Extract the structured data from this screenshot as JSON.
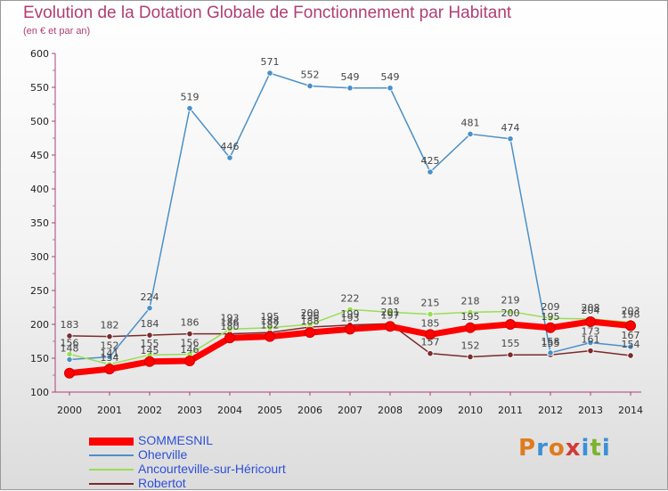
{
  "chart_data": {
    "type": "line",
    "title": "Evolution de la Dotation Globale de Fonctionnement par Habitant",
    "subtitle": "(en € et par an)",
    "xlabel": "",
    "ylabel": "",
    "ylim": [
      100,
      600
    ],
    "yticks": [
      100,
      150,
      200,
      250,
      300,
      350,
      400,
      450,
      500,
      550,
      600
    ],
    "grid": false,
    "legend_position": "bottom-left",
    "categories": [
      "2000",
      "2001",
      "2002",
      "2003",
      "2004",
      "2005",
      "2006",
      "2007",
      "2008",
      "2009",
      "2010",
      "2011",
      "2012",
      "2013",
      "2014"
    ],
    "series": [
      {
        "name": "SOMMESNIL",
        "color": "#ff0000",
        "values": [
          128,
          134,
          145,
          146,
          180,
          182,
          188,
          193,
          197,
          185,
          195,
          200,
          195,
          204,
          198
        ],
        "labels": [
          "",
          "134",
          "145",
          "146",
          "180",
          "182",
          "188",
          "193",
          "197",
          "185",
          "195",
          "200",
          "195",
          "204",
          "198"
        ]
      },
      {
        "name": "Oherville",
        "color": "#4a90c8",
        "values": [
          148,
          152,
          224,
          519,
          446,
          571,
          552,
          549,
          549,
          425,
          481,
          474,
          158,
          173,
          167
        ],
        "labels": [
          "148",
          "152",
          "224",
          "519",
          "446",
          "571",
          "552",
          "549",
          "549",
          "425",
          "481",
          "474",
          "158",
          "173",
          "167"
        ]
      },
      {
        "name": "Ancourteville-sur-Héricourt",
        "color": "#99dd55",
        "values": [
          156,
          141,
          155,
          156,
          193,
          195,
          200,
          222,
          218,
          215,
          218,
          219,
          209,
          208,
          203
        ],
        "labels": [
          "156",
          "141",
          "155",
          "156",
          "193",
          "195",
          "200",
          "222",
          "218",
          "215",
          "218",
          "219",
          "209",
          "208",
          "203"
        ]
      },
      {
        "name": "Robertot",
        "color": "#7a2b2b",
        "values": [
          183,
          182,
          184,
          186,
          186,
          188,
          196,
          199,
          201,
          157,
          152,
          155,
          155,
          161,
          154
        ],
        "labels": [
          "183",
          "182",
          "184",
          "186",
          "186",
          "188",
          "196",
          "199",
          "201",
          "157",
          "152",
          "155",
          "155",
          "161",
          "154"
        ]
      }
    ]
  },
  "branding": {
    "logo": [
      "P",
      "r",
      "o",
      "x",
      "i",
      "t",
      "i"
    ]
  }
}
